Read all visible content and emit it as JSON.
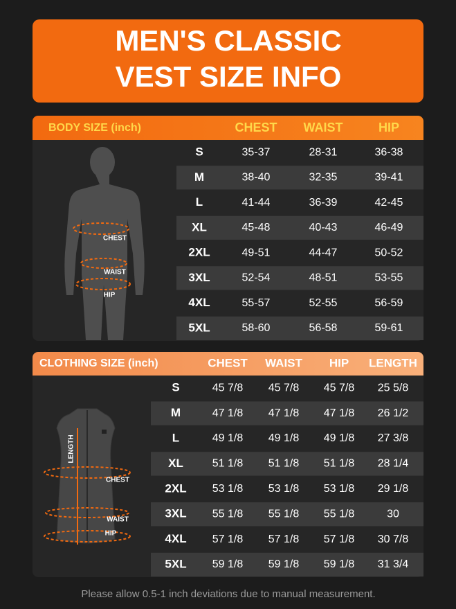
{
  "title": {
    "lines": [
      "MEN'S CLASSIC",
      "VEST SIZE INFO"
    ]
  },
  "body_size": {
    "header": [
      "BODY SIZE (inch)",
      "CHEST",
      "WAIST",
      "HIP"
    ],
    "rows": [
      [
        "S",
        "35-37",
        "28-31",
        "36-38"
      ],
      [
        "M",
        "38-40",
        "32-35",
        "39-41"
      ],
      [
        "L",
        "41-44",
        "36-39",
        "42-45"
      ],
      [
        "XL",
        "45-48",
        "40-43",
        "46-49"
      ],
      [
        "2XL",
        "49-51",
        "44-47",
        "50-52"
      ],
      [
        "3XL",
        "52-54",
        "48-51",
        "53-55"
      ],
      [
        "4XL",
        "55-57",
        "52-55",
        "56-59"
      ],
      [
        "5XL",
        "58-60",
        "56-58",
        "59-61"
      ]
    ],
    "figure_labels": [
      "CHEST",
      "WAIST",
      "HIP"
    ]
  },
  "clothing_size": {
    "header": [
      "CLOTHING SIZE (inch)",
      "CHEST",
      "WAIST",
      "HIP",
      "LENGTH"
    ],
    "rows": [
      [
        "S",
        "45 7/8",
        "45 7/8",
        "45 7/8",
        "25 5/8"
      ],
      [
        "M",
        "47 1/8",
        "47 1/8",
        "47 1/8",
        "26 1/2"
      ],
      [
        "L",
        "49 1/8",
        "49 1/8",
        "49 1/8",
        "27 3/8"
      ],
      [
        "XL",
        "51 1/8",
        "51 1/8",
        "51 1/8",
        "28 1/4"
      ],
      [
        "2XL",
        "53 1/8",
        "53 1/8",
        "53 1/8",
        "29 1/8"
      ],
      [
        "3XL",
        "55 1/8",
        "55 1/8",
        "55 1/8",
        "30"
      ],
      [
        "4XL",
        "57 1/8",
        "57 1/8",
        "57 1/8",
        "30 7/8"
      ],
      [
        "5XL",
        "59 1/8",
        "59 1/8",
        "59 1/8",
        "31 3/4"
      ]
    ],
    "figure_labels": [
      "LENGTH",
      "CHEST",
      "WAIST",
      "HIP"
    ]
  },
  "footer": "Please allow 0.5-1 inch deviations due to manual measurement."
}
